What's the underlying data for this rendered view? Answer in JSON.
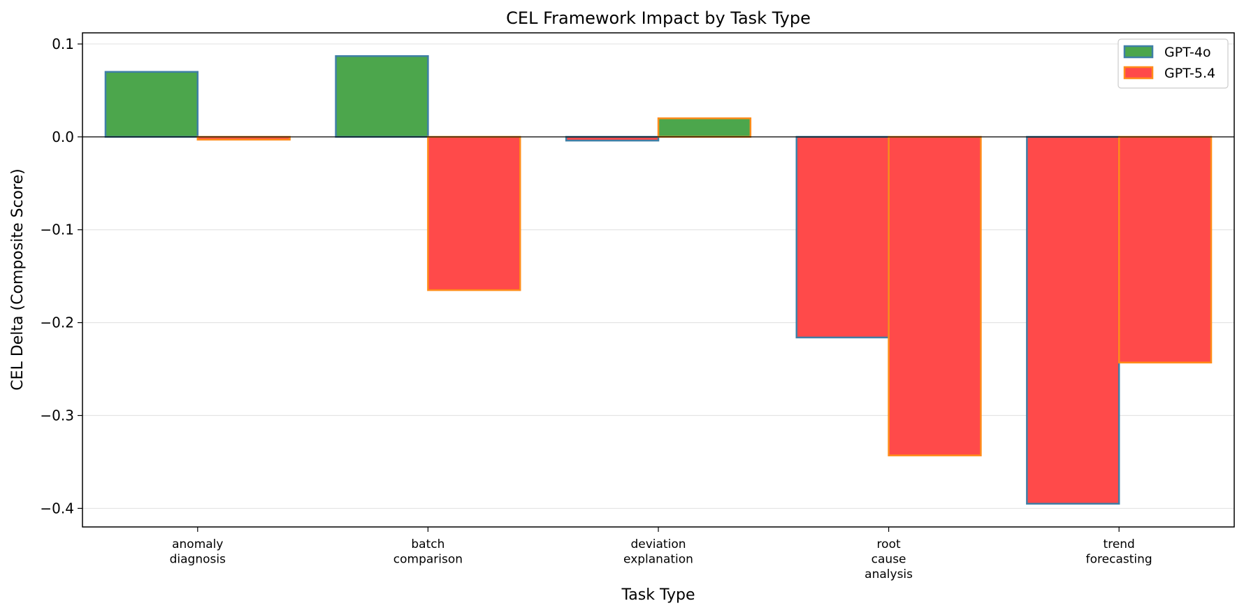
{
  "chart_data": {
    "type": "bar",
    "title": "CEL Framework Impact by Task Type",
    "xlabel": "Task Type",
    "ylabel": "CEL Delta (Composite Score)",
    "categories": [
      [
        "anomaly",
        "diagnosis"
      ],
      [
        "batch",
        "comparison"
      ],
      [
        "deviation",
        "explanation"
      ],
      [
        "root",
        "cause",
        "analysis"
      ],
      [
        "trend",
        "forecasting"
      ]
    ],
    "series": [
      {
        "name": "GPT-4o",
        "values": [
          0.07,
          0.087,
          -0.004,
          -0.216,
          -0.395
        ],
        "edge_color": "#3f7fa6"
      },
      {
        "name": "GPT-5.4",
        "values": [
          -0.003,
          -0.165,
          0.02,
          -0.343,
          -0.243
        ],
        "edge_color": "#ff8c1a"
      }
    ],
    "positive_color": "#4ca64c",
    "negative_color": "#ff4a4a",
    "ylim": [
      -0.42,
      0.112
    ],
    "yticks": [
      0.1,
      0.0,
      -0.1,
      -0.2,
      -0.3,
      -0.4
    ],
    "ytick_labels": [
      "0.1",
      "0.0",
      "−0.1",
      "−0.2",
      "−0.3",
      "−0.4"
    ],
    "grid": "y",
    "legend_position": "top-right",
    "legend_swatch_colors": [
      "#4ca64c",
      "#ff4a4a"
    ]
  }
}
